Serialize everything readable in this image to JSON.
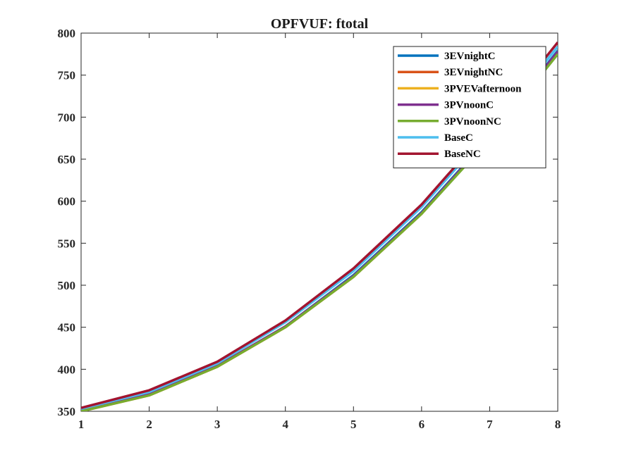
{
  "chart_data": {
    "type": "line",
    "title": "OPFVUF: ftotal",
    "xlabel": "",
    "ylabel": "",
    "x": [
      1,
      2,
      3,
      4,
      5,
      6,
      7,
      8
    ],
    "xlim": [
      1,
      8
    ],
    "ylim": [
      350,
      800
    ],
    "xticks": [
      "1",
      "2",
      "3",
      "4",
      "5",
      "6",
      "7",
      "8"
    ],
    "yticks": [
      "350",
      "400",
      "450",
      "500",
      "550",
      "600",
      "650",
      "700",
      "750",
      "800"
    ],
    "grid": false,
    "legend_position": "top-right",
    "series": [
      {
        "name": "3EVnightC",
        "color": "#0072BD",
        "values": [
          351,
          370,
          404,
          451,
          512,
          587,
          677,
          779
        ]
      },
      {
        "name": "3EVnightNC",
        "color": "#D95319",
        "values": [
          350,
          369,
          403,
          450,
          510,
          585,
          675,
          776
        ]
      },
      {
        "name": "3PVEVafternoon",
        "color": "#EDB120",
        "values": [
          350,
          369,
          403,
          450,
          510,
          585,
          675,
          776
        ]
      },
      {
        "name": "3PVnoonC",
        "color": "#7E2F8E",
        "values": [
          351,
          370,
          404,
          451,
          511,
          586,
          676,
          778
        ]
      },
      {
        "name": "3PVnoonNC",
        "color": "#77AC30",
        "values": [
          350,
          369,
          403,
          450,
          510,
          585,
          674,
          775
        ]
      },
      {
        "name": "BaseC",
        "color": "#4DBEEE",
        "values": [
          353,
          373,
          407,
          456,
          517,
          593,
          684,
          784
        ]
      },
      {
        "name": "BaseNC",
        "color": "#A2142F",
        "values": [
          354,
          375,
          409,
          458,
          520,
          596,
          688,
          789
        ]
      }
    ]
  }
}
